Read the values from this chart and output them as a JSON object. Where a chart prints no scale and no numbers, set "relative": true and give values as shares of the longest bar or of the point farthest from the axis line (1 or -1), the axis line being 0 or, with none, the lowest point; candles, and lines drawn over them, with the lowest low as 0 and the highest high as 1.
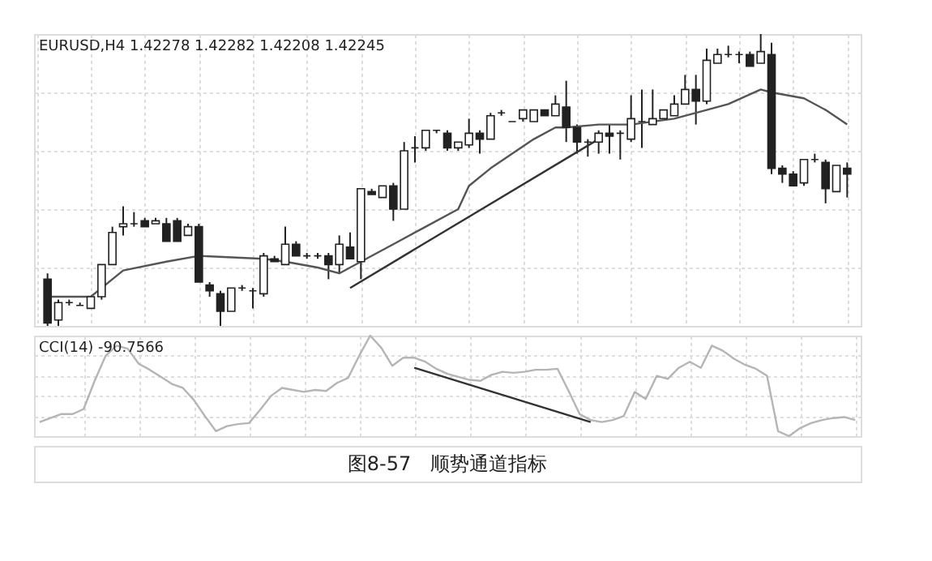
{
  "chart_data": [
    {
      "type": "candlestick",
      "title": "EURUSD,H4 1.42278 1.42282 1.42208 1.42245",
      "relative": true,
      "grid": true,
      "tick_labels": false,
      "categories": [
        null,
        null,
        null,
        null,
        null,
        null,
        null,
        null,
        null,
        null,
        null,
        null,
        null,
        null,
        null,
        null,
        null,
        null,
        null,
        null,
        null,
        null,
        null,
        null,
        null,
        null,
        null,
        null,
        null,
        null,
        null,
        null,
        null,
        null,
        null,
        null,
        null,
        null,
        null,
        null,
        null,
        null,
        null,
        null,
        null,
        null,
        null,
        null,
        null,
        null,
        null,
        null,
        null,
        null,
        null,
        null,
        null,
        null,
        null,
        null,
        null,
        null,
        null,
        null,
        null,
        null,
        null,
        null,
        null,
        null,
        null,
        null,
        null,
        null,
        null
      ],
      "ohlc": [
        [
          0.16,
          0.18,
          0,
          0.01
        ],
        [
          0.02,
          0.09,
          0,
          0.08
        ],
        [
          0.08,
          0.09,
          0.07,
          0.08
        ],
        [
          0.07,
          0.08,
          0.07,
          0.07
        ],
        [
          0.06,
          0.1,
          0.06,
          0.1
        ],
        [
          0.1,
          0.21,
          0.09,
          0.21
        ],
        [
          0.21,
          0.34,
          0.21,
          0.32
        ],
        [
          0.34,
          0.41,
          0.31,
          0.35
        ],
        [
          0.35,
          0.39,
          0.34,
          0.35
        ],
        [
          0.36,
          0.37,
          0.34,
          0.34
        ],
        [
          0.35,
          0.37,
          0.35,
          0.36
        ],
        [
          0.35,
          0.37,
          0.29,
          0.29
        ],
        [
          0.36,
          0.37,
          0.29,
          0.29
        ],
        [
          0.31,
          0.35,
          0.31,
          0.34
        ],
        [
          0.34,
          0.35,
          0.15,
          0.15
        ],
        [
          0.14,
          0.15,
          0.1,
          0.12
        ],
        [
          0.11,
          0.12,
          0,
          0.05
        ],
        [
          0.05,
          0.13,
          0.05,
          0.13
        ],
        [
          0.13,
          0.14,
          0.12,
          0.13
        ],
        [
          0.12,
          0.13,
          0.06,
          0.12
        ],
        [
          0.11,
          0.25,
          0.1,
          0.24
        ],
        [
          0.23,
          0.24,
          0.22,
          0.22
        ],
        [
          0.21,
          0.34,
          0.21,
          0.28
        ],
        [
          0.28,
          0.29,
          0.24,
          0.24
        ],
        [
          0.24,
          0.25,
          0.23,
          0.24
        ],
        [
          0.24,
          0.25,
          0.23,
          0.24
        ],
        [
          0.24,
          0.25,
          0.16,
          0.21
        ],
        [
          0.21,
          0.31,
          0.18,
          0.28
        ],
        [
          0.27,
          0.32,
          0.23,
          0.23
        ],
        [
          0.22,
          0.47,
          0.16,
          0.47
        ],
        [
          0.46,
          0.47,
          0.45,
          0.45
        ],
        [
          0.44,
          0.48,
          0.44,
          0.48
        ],
        [
          0.48,
          0.49,
          0.36,
          0.4
        ],
        [
          0.4,
          0.63,
          0.4,
          0.6
        ],
        [
          0.61,
          0.65,
          0.56,
          0.61
        ],
        [
          0.61,
          0.67,
          0.6,
          0.67
        ],
        [
          0.67,
          0.67,
          0.66,
          0.67
        ],
        [
          0.66,
          0.67,
          0.6,
          0.61
        ],
        [
          0.61,
          0.63,
          0.6,
          0.63
        ],
        [
          0.62,
          0.71,
          0.61,
          0.66
        ],
        [
          0.66,
          0.67,
          0.59,
          0.64
        ],
        [
          0.64,
          0.73,
          0.64,
          0.72
        ],
        [
          0.73,
          0.74,
          0.72,
          0.73
        ],
        [
          0.7,
          0.7,
          0.7,
          0.7
        ],
        [
          0.71,
          0.74,
          0.7,
          0.74
        ],
        [
          0.7,
          0.74,
          0.7,
          0.74
        ],
        [
          0.74,
          0.74,
          0.72,
          0.72
        ],
        [
          0.72,
          0.79,
          0.72,
          0.76
        ],
        [
          0.75,
          0.84,
          0.63,
          0.68
        ],
        [
          0.68,
          0.69,
          0.59,
          0.63
        ],
        [
          0.63,
          0.64,
          0.58,
          0.63
        ],
        [
          0.63,
          0.67,
          0.59,
          0.66
        ],
        [
          0.66,
          0.69,
          0.59,
          0.65
        ],
        [
          0.66,
          0.67,
          0.57,
          0.66
        ],
        [
          0.64,
          0.79,
          0.63,
          0.71
        ],
        [
          0.7,
          0.81,
          0.61,
          0.7
        ],
        [
          0.69,
          0.81,
          0.69,
          0.71
        ],
        [
          0.71,
          0.74,
          0.71,
          0.74
        ],
        [
          0.72,
          0.79,
          0.72,
          0.76
        ],
        [
          0.76,
          0.86,
          0.76,
          0.81
        ],
        [
          0.81,
          0.86,
          0.69,
          0.77
        ],
        [
          0.77,
          0.95,
          0.76,
          0.91
        ],
        [
          0.9,
          0.95,
          0.9,
          0.93
        ],
        [
          0.93,
          0.96,
          0.92,
          0.93
        ],
        [
          0.93,
          0.94,
          0.9,
          0.93
        ],
        [
          0.93,
          0.94,
          0.89,
          0.89
        ],
        [
          0.9,
          1.0,
          0.9,
          0.94
        ],
        [
          0.93,
          0.97,
          0.52,
          0.54
        ],
        [
          0.54,
          0.55,
          0.49,
          0.52
        ],
        [
          0.52,
          0.53,
          0.48,
          0.48
        ],
        [
          0.49,
          0.57,
          0.48,
          0.57
        ],
        [
          0.57,
          0.59,
          0.56,
          0.57
        ],
        [
          0.56,
          0.57,
          0.42,
          0.47
        ],
        [
          0.46,
          0.55,
          0.46,
          0.55
        ],
        [
          0.54,
          0.56,
          0.44,
          0.52
        ]
      ],
      "series": [
        {
          "type": "line",
          "color": "#555555",
          "values": [
            0.1,
            null,
            null,
            null,
            0.1,
            null,
            null,
            0.19,
            null,
            null,
            null,
            0.22,
            null,
            null,
            0.24,
            null,
            null,
            null,
            null,
            null,
            0.23,
            null,
            0.22,
            null,
            null,
            0.2,
            null,
            0.18,
            null,
            0.22,
            null,
            null,
            0.28,
            null,
            null,
            0.34,
            null,
            null,
            0.4,
            0.48,
            null,
            0.54,
            null,
            0.59,
            null,
            0.64,
            null,
            0.68,
            0.68,
            null,
            null,
            0.69,
            null,
            null,
            0.69,
            null,
            null,
            null,
            0.71,
            null,
            null,
            0.74,
            null,
            0.76,
            null,
            null,
            0.81,
            0.8,
            null,
            null,
            0.78,
            null,
            0.74,
            null,
            0.69
          ]
        },
        {
          "type": "line",
          "color": "#333333",
          "values": [
            null,
            null,
            null,
            null,
            null,
            null,
            null,
            null,
            null,
            null,
            null,
            null,
            null,
            null,
            null,
            null,
            null,
            null,
            null,
            null,
            null,
            null,
            null,
            null,
            null,
            null,
            null,
            null,
            0.13,
            null,
            null,
            null,
            null,
            null,
            null,
            null,
            null,
            null,
            null,
            null,
            null,
            null,
            null,
            null,
            null,
            null,
            null,
            null,
            null,
            null,
            null,
            0.64,
            null,
            null,
            null,
            null,
            null,
            null,
            null,
            null,
            null,
            null,
            null,
            null,
            null,
            null,
            null,
            null,
            null,
            null,
            null,
            null,
            null,
            null,
            null
          ]
        }
      ]
    },
    {
      "type": "line",
      "title": "CCI(14) -90.7566",
      "relative": true,
      "grid": true,
      "tick_labels": false,
      "categories": [
        null,
        null,
        null,
        null,
        null,
        null,
        null,
        null,
        null,
        null,
        null,
        null,
        null,
        null,
        null,
        null,
        null,
        null,
        null,
        null,
        null,
        null,
        null,
        null,
        null,
        null,
        null,
        null,
        null,
        null,
        null,
        null,
        null,
        null,
        null,
        null,
        null,
        null,
        null,
        null,
        null,
        null,
        null,
        null,
        null,
        null,
        null,
        null,
        null,
        null,
        null,
        null,
        null,
        null,
        null,
        null,
        null,
        null,
        null,
        null,
        null,
        null,
        null,
        null,
        null,
        null,
        null,
        null,
        null,
        null,
        null,
        null,
        null,
        null,
        null
      ],
      "series": [
        {
          "color": "#b5b5b5",
          "values": [
            0.14,
            0.18,
            0.22,
            0.22,
            0.27,
            0.55,
            0.8,
            0.9,
            0.87,
            0.72,
            0.66,
            0.59,
            0.52,
            0.48,
            0.36,
            0.2,
            0.05,
            0.1,
            0.12,
            0.13,
            0.26,
            0.4,
            0.48,
            0.46,
            0.44,
            0.46,
            0.45,
            0.53,
            0.58,
            0.8,
            1.0,
            0.88,
            0.7,
            0.78,
            0.78,
            0.74,
            0.67,
            0.62,
            0.59,
            0.56,
            0.55,
            0.61,
            0.64,
            0.63,
            0.64,
            0.66,
            0.66,
            0.67,
            0.45,
            0.22,
            0.16,
            0.14,
            0.16,
            0.2,
            0.44,
            0.37,
            0.6,
            0.57,
            0.68,
            0.74,
            0.68,
            0.9,
            0.85,
            0.77,
            0.71,
            0.67,
            0.6,
            0.05,
            0,
            0.08,
            0.13,
            0.16,
            0.18,
            0.19,
            0.16
          ]
        },
        {
          "color": "#333333",
          "values": [
            null,
            null,
            null,
            null,
            null,
            null,
            null,
            null,
            null,
            null,
            null,
            null,
            null,
            null,
            null,
            null,
            null,
            null,
            null,
            null,
            null,
            null,
            null,
            null,
            null,
            null,
            null,
            null,
            null,
            null,
            null,
            null,
            null,
            null,
            0.68,
            null,
            null,
            null,
            null,
            null,
            null,
            null,
            null,
            null,
            null,
            null,
            null,
            null,
            null,
            null,
            0.14,
            null,
            null,
            null,
            null,
            null,
            null,
            null,
            null,
            null,
            null,
            null,
            null,
            null,
            null,
            null,
            null,
            null,
            null,
            null,
            null,
            null,
            null,
            null,
            null
          ]
        }
      ],
      "annotations": [
        "图8-57　顺势通道指标"
      ]
    }
  ]
}
